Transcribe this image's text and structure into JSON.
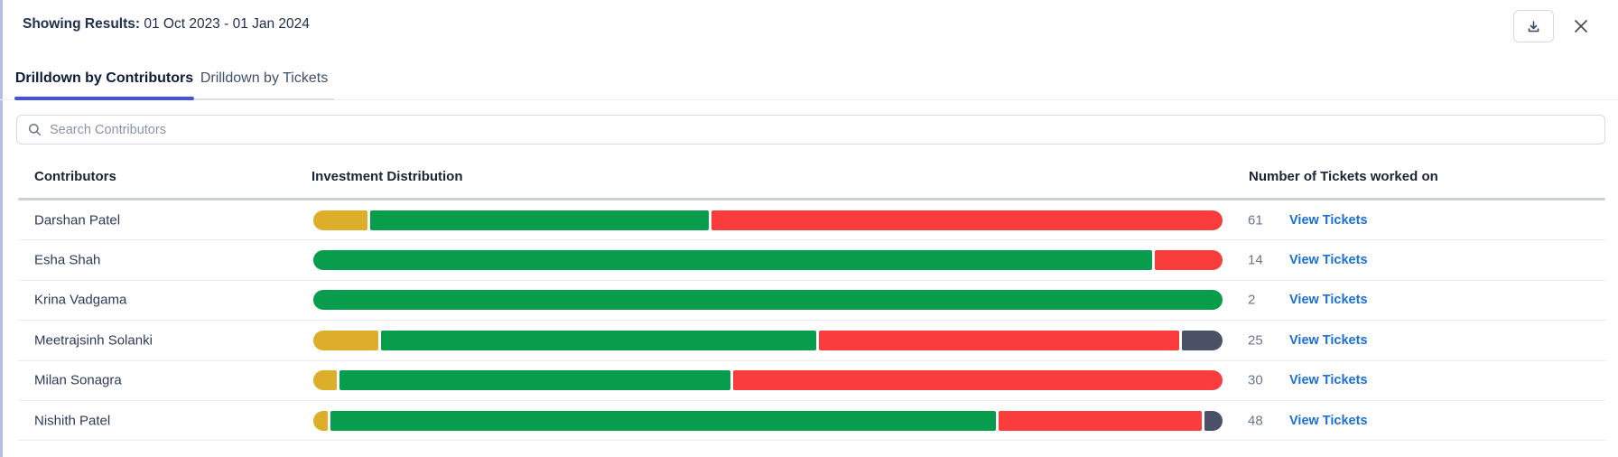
{
  "header": {
    "label": "Showing Results:",
    "value": "01 Oct 2023 - 01 Jan 2024",
    "download_icon": "download-tray-arrow",
    "close_icon": "x-cross"
  },
  "tabs": [
    {
      "label": "Drilldown by Contributors",
      "active": true
    },
    {
      "label": "Drilldown by Tickets",
      "active": false
    }
  ],
  "search": {
    "icon": "magnifier",
    "placeholder": "Search Contributors",
    "value": ""
  },
  "table": {
    "columns": [
      "Contributors",
      "Investment Distribution",
      "Number of Tickets worked on"
    ],
    "link_label": "View Tickets",
    "rows": [
      {
        "name": "Darshan Patel",
        "tickets": "61",
        "segments": [
          {
            "color": "yellow",
            "pct": 6.0
          },
          {
            "color": "green",
            "pct": 37.5
          },
          {
            "color": "red",
            "pct": 56.5
          }
        ]
      },
      {
        "name": "Esha Shah",
        "tickets": "14",
        "segments": [
          {
            "color": "green",
            "pct": 92.5
          },
          {
            "color": "red",
            "pct": 7.5
          }
        ]
      },
      {
        "name": "Krina Vadgama",
        "tickets": "2",
        "segments": [
          {
            "color": "green",
            "pct": 100
          }
        ]
      },
      {
        "name": "Meetrajsinh Solanki",
        "tickets": "25",
        "segments": [
          {
            "color": "yellow",
            "pct": 7.2
          },
          {
            "color": "green",
            "pct": 48.3
          },
          {
            "color": "red",
            "pct": 40.0
          },
          {
            "color": "dark",
            "pct": 4.5
          }
        ]
      },
      {
        "name": "Milan Sonagra",
        "tickets": "30",
        "segments": [
          {
            "color": "yellow",
            "pct": 2.6
          },
          {
            "color": "green",
            "pct": 43.3
          },
          {
            "color": "red",
            "pct": 54.1
          }
        ]
      },
      {
        "name": "Nishith Patel",
        "tickets": "48",
        "segments": [
          {
            "color": "yellow",
            "pct": 1.6
          },
          {
            "color": "green",
            "pct": 73.9
          },
          {
            "color": "red",
            "pct": 22.5
          },
          {
            "color": "dark",
            "pct": 2.0
          }
        ]
      }
    ]
  },
  "colors": {
    "yellow": "#DCAE29",
    "green": "#089C4D",
    "red": "#FB3C3C",
    "dark": "#4A5065",
    "tab_underline": "#4353E0",
    "link_blue": "#1A6FD4",
    "left_accent": "#B3BFE8"
  }
}
